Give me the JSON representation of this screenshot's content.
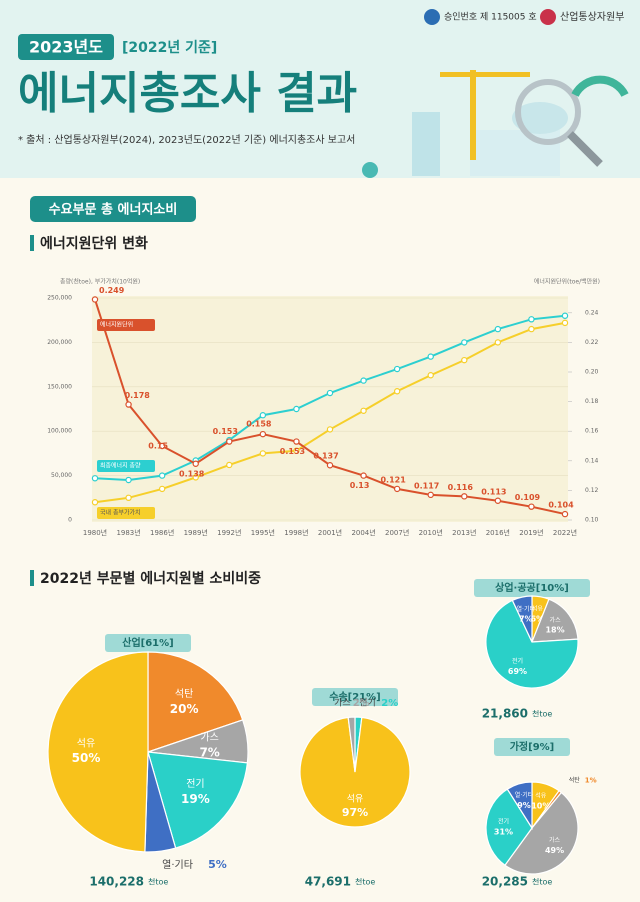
{
  "header": {
    "approval": "승인번호 제 115005 호",
    "ministry": "산업통상자원부",
    "year": "2023년도",
    "basis": "[2022년 기준]",
    "title": "에너지총조사 결과",
    "source": "* 출처 : 산업통상자원부(2024), 2023년도(2022년 기준) 에너지총조사 보고서"
  },
  "sections": {
    "main": "수요부문 총 에너지소비",
    "intensity": "에너지원단위 변화",
    "share": "2022년 부문별 에너지원별 소비비중"
  },
  "chart_data": [
    {
      "type": "line",
      "y_label": "총량(천toe), 부가가치(10억원)",
      "y2_label": "에너지원단위(toe/백만원)",
      "categories": [
        "1980년",
        "1983년",
        "1986년",
        "1989년",
        "1992년",
        "1995년",
        "1998년",
        "2001년",
        "2004년",
        "2007년",
        "2010년",
        "2013년",
        "2016년",
        "2019년",
        "2022년"
      ],
      "ylim": [
        0,
        250000
      ],
      "yticks": [
        0,
        {
          "value": 50000,
          "label": "50,000"
        },
        {
          "value": 100000,
          "label": "100,000"
        },
        {
          "value": 150000,
          "label": "150,000"
        },
        {
          "value": 200000,
          "label": "200,000"
        },
        {
          "value": 250000,
          "label": "250,000"
        }
      ],
      "y2lim": [
        0.1,
        0.25
      ],
      "y2ticks": [
        {
          "value": 0.1,
          "label": "0.10"
        },
        0.12,
        0.14,
        0.16,
        0.18,
        {
          "value": 0.2,
          "label": "0.20"
        },
        0.22,
        0.24
      ],
      "grid": true,
      "series": [
        {
          "name": "최종에너지 총량",
          "color": "#2ccfd0",
          "values": [
            47000,
            45000,
            50000,
            67000,
            90000,
            118000,
            125000,
            143000,
            157000,
            170000,
            184000,
            200000,
            215000,
            226000,
            230000
          ]
        },
        {
          "name": "국내 총부가가치",
          "color": "#f6cf2a",
          "values": [
            20000,
            25000,
            35000,
            48000,
            62000,
            75000,
            78000,
            102000,
            123000,
            145000,
            163000,
            180000,
            200000,
            215000,
            222000
          ]
        },
        {
          "name": "에너지원단위",
          "color": "#d9512c",
          "axis": "y2",
          "values": [
            0.249,
            0.178,
            0.15,
            0.138,
            0.153,
            0.158,
            0.153,
            0.137,
            0.13,
            0.121,
            0.117,
            0.116,
            0.113,
            0.109,
            0.104
          ]
        }
      ]
    },
    {
      "type": "pie",
      "title": "산업[61%]",
      "total": "140,228",
      "unit": "천toe",
      "categories": [
        "석탄",
        "가스",
        "전기",
        "열·기타",
        "석유"
      ],
      "values": [
        20,
        7,
        19,
        5,
        50
      ],
      "value_labels": [
        "20%",
        "7%",
        "19%",
        "5%",
        "50%"
      ],
      "colors": [
        "#f08a2c",
        "#a6a6a6",
        "#2ad0c8",
        "#3f6fc4",
        "#f8c21b"
      ]
    },
    {
      "type": "pie",
      "title": "수송[21%]",
      "total": "47,691",
      "unit": "천toe",
      "categories": [
        "전기",
        "석유",
        "가스"
      ],
      "values": [
        2,
        97,
        2
      ],
      "value_labels": [
        "2%",
        "97%",
        "2%"
      ],
      "colors": [
        "#2ad0c8",
        "#f8c21b",
        "#a6a6a6"
      ]
    },
    {
      "type": "pie",
      "title": "상업·공공[10%]",
      "total": "21,860",
      "unit": "천toe",
      "categories": [
        "석유",
        "가스",
        "전기",
        "열·기타"
      ],
      "values": [
        6,
        18,
        69,
        7
      ],
      "value_labels": [
        "6%",
        "18%",
        "69%",
        "7%"
      ],
      "colors": [
        "#f8c21b",
        "#a6a6a6",
        "#2ad0c8",
        "#3f6fc4"
      ]
    },
    {
      "type": "pie",
      "title": "가정[9%]",
      "total": "20,285",
      "unit": "천toe",
      "categories": [
        "석유",
        "석탄",
        "가스",
        "전기",
        "열·기타"
      ],
      "values": [
        10,
        1,
        49,
        31,
        9
      ],
      "value_labels": [
        "10%",
        "1%",
        "49%",
        "31%",
        "9%"
      ],
      "colors": [
        "#f8c21b",
        "#f08a2c",
        "#a6a6a6",
        "#2ad0c8",
        "#3f6fc4"
      ]
    }
  ]
}
